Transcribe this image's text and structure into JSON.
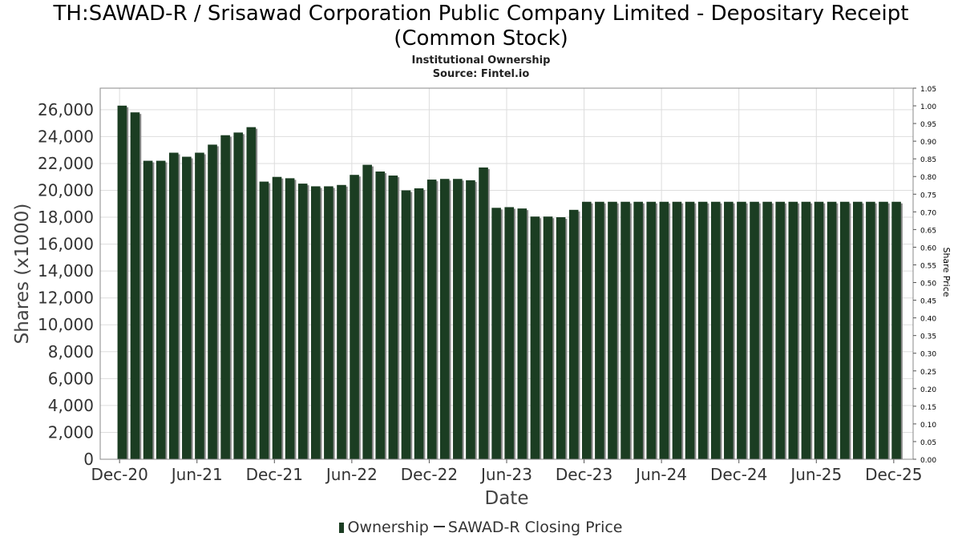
{
  "title_line1": "TH:SAWAD-R / Srisawad Corporation Public Company Limited - Depositary Receipt",
  "title_line2": "(Common Stock)",
  "subtitle_line1": "Institutional Ownership",
  "subtitle_line2": "Source: Fintel.io",
  "legend": {
    "ownership_label": "Ownership",
    "price_label": "SAWAD-R Closing Price"
  },
  "colors": {
    "bar": "#1b3d22",
    "bar_shadow": "#8a8a8a",
    "grid": "#dddddd",
    "plot_border": "#888888"
  },
  "chart_data": {
    "type": "bar",
    "title": "TH:SAWAD-R / Srisawad Corporation Public Company Limited - Depositary Receipt (Common Stock)",
    "xlabel": "Date",
    "ylabel": "Shares (x1000)",
    "y2label": "Share Price",
    "ylim": [
      0,
      27600
    ],
    "yticks": [
      0,
      2000,
      4000,
      6000,
      8000,
      10000,
      12000,
      14000,
      16000,
      18000,
      20000,
      22000,
      24000,
      26000
    ],
    "ytick_labels": [
      "0",
      "2,000",
      "4,000",
      "6,000",
      "8,000",
      "10,000",
      "12,000",
      "14,000",
      "16,000",
      "18,000",
      "20,000",
      "22,000",
      "24,000",
      "26,000"
    ],
    "y2lim": [
      0,
      1.05
    ],
    "y2tick_labels": [
      "0.00",
      "0.05",
      "0.10",
      "0.15",
      "0.20",
      "0.25",
      "0.30",
      "0.35",
      "0.40",
      "0.45",
      "0.50",
      "0.55",
      "0.60",
      "0.65",
      "0.70",
      "0.75",
      "0.80",
      "0.85",
      "0.90",
      "0.95",
      "1.00",
      "1.05"
    ],
    "xrange_months": [
      -1.5,
      61.5
    ],
    "xtick_months": [
      0,
      6,
      12,
      18,
      24,
      30,
      36,
      42,
      48,
      54,
      60
    ],
    "xtick_labels": [
      "Dec-20",
      "Jun-21",
      "Dec-21",
      "Jun-22",
      "Dec-22",
      "Jun-23",
      "Dec-23",
      "Jun-24",
      "Dec-24",
      "Jun-25",
      "Dec-25"
    ],
    "bar_start_month": 0.2,
    "bar_step_months": 1,
    "values": [
      26300,
      25800,
      22200,
      22200,
      22800,
      22500,
      22800,
      23400,
      24100,
      24300,
      24700,
      20650,
      21000,
      20900,
      20500,
      20300,
      20300,
      20400,
      21150,
      21900,
      21400,
      21100,
      20000,
      20150,
      20800,
      20850,
      20850,
      20750,
      21700,
      18700,
      18750,
      18650,
      18050,
      18050,
      18000,
      18550,
      19150,
      19150,
      19150,
      19150,
      19150,
      19150,
      19150,
      19150,
      19150,
      19150,
      19150,
      19150,
      19150,
      19150,
      19150,
      19150,
      19150,
      19150,
      19150,
      19150,
      19150,
      19150,
      19150,
      19150,
      19150
    ],
    "series": [
      {
        "name": "Ownership",
        "type": "bar"
      },
      {
        "name": "SAWAD-R Closing Price",
        "type": "line",
        "values": []
      }
    ],
    "grid": true,
    "legend_position": "bottom-center"
  }
}
